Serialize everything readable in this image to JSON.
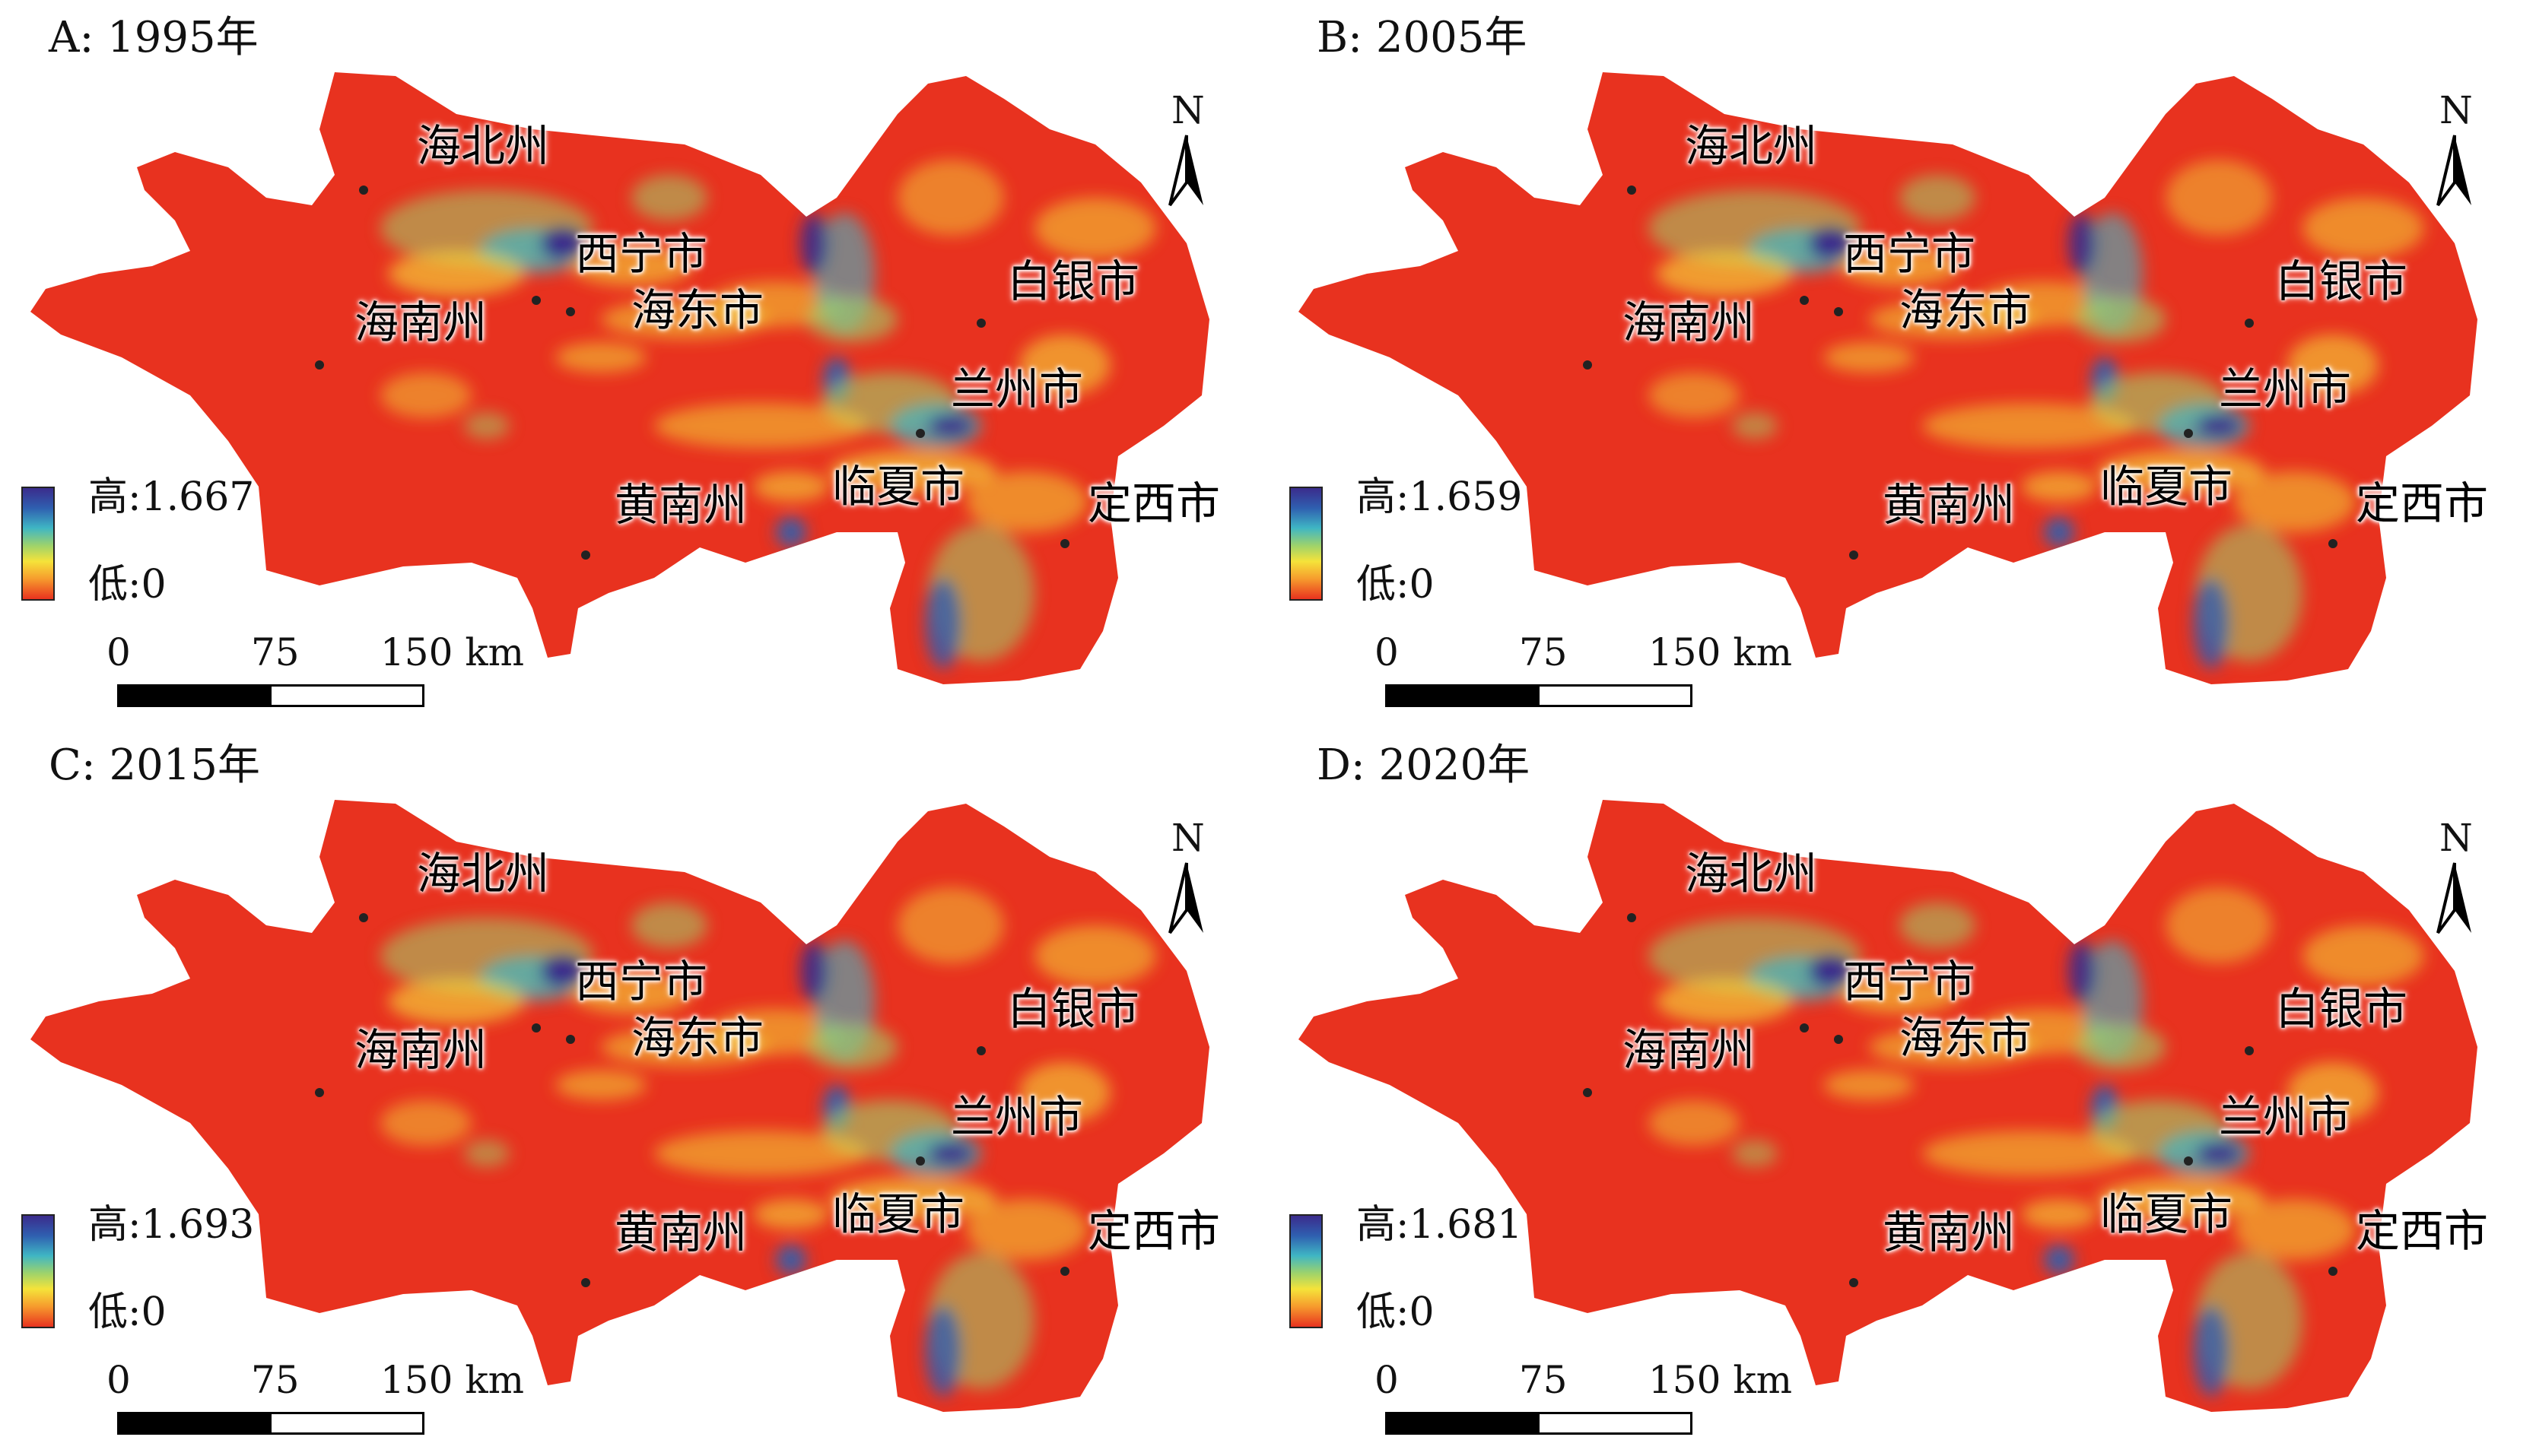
{
  "figure": {
    "legend_colors": [
      "#3b2c8c",
      "#2f5fb0",
      "#3fb6c4",
      "#9fd36a",
      "#f5e33a",
      "#f69a2d",
      "#e8321f"
    ],
    "base_color": "#e8321f",
    "north_label": "N",
    "scale_ticks": [
      "0",
      "75",
      "150 km"
    ],
    "place_labels": [
      "海北州",
      "西宁市",
      "海南州",
      "海东市",
      "白银市",
      "兰州市",
      "黄南州",
      "临夏市",
      "定西市"
    ]
  },
  "panels": [
    {
      "title": "A: 1995年",
      "legend_high": "高:1.667",
      "legend_low": "低:0",
      "high_value": 1.667,
      "low_value": 0
    },
    {
      "title": "B: 2005年",
      "legend_high": "高:1.659",
      "legend_low": "低:0",
      "high_value": 1.659,
      "low_value": 0
    },
    {
      "title": "C: 2015年",
      "legend_high": "高:1.693",
      "legend_low": "低:0",
      "high_value": 1.693,
      "low_value": 0
    },
    {
      "title": "D: 2020年",
      "legend_high": "高:1.681",
      "legend_low": "低:0",
      "high_value": 1.681,
      "low_value": 0
    }
  ]
}
